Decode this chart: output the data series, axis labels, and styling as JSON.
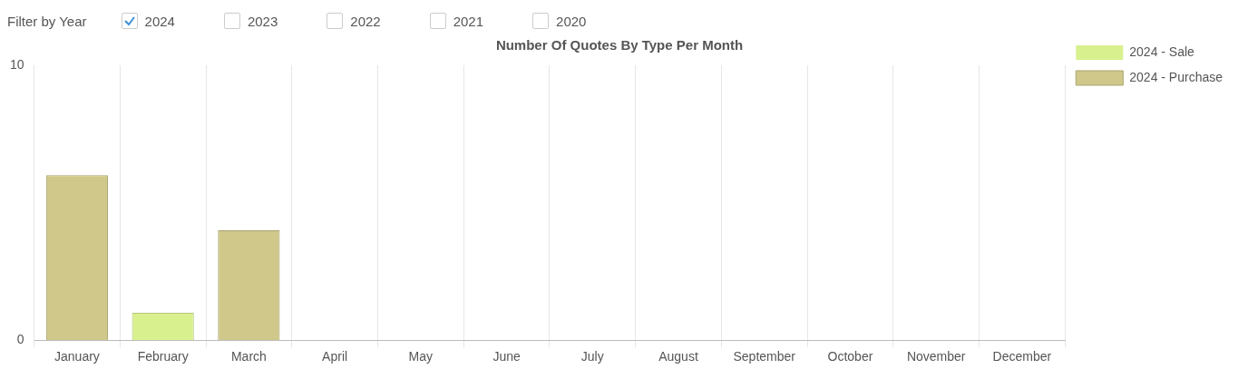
{
  "chart_data": {
    "type": "bar",
    "title": "Number Of Quotes By Type Per Month",
    "annotations": [
      "Filter by Year",
      "2024",
      "2023",
      "2022",
      "2021",
      "2020"
    ],
    "categories": [
      "January",
      "February",
      "March",
      "April",
      "May",
      "June",
      "July",
      "August",
      "September",
      "October",
      "November",
      "December"
    ],
    "series": [
      {
        "name": "2024 - Sale",
        "color": "#d9f08f",
        "values": [
          0,
          1,
          0,
          0,
          0,
          0,
          0,
          0,
          0,
          0,
          0,
          0
        ]
      },
      {
        "name": "2024 - Purchase",
        "color": "#cfc88a",
        "values": [
          6,
          0,
          4,
          0,
          0,
          0,
          0,
          0,
          0,
          0,
          0,
          0
        ]
      }
    ],
    "stacked": true,
    "ylim": [
      0,
      10
    ],
    "yticks": [
      0,
      10
    ],
    "grid": "x",
    "legend": "top right"
  }
}
